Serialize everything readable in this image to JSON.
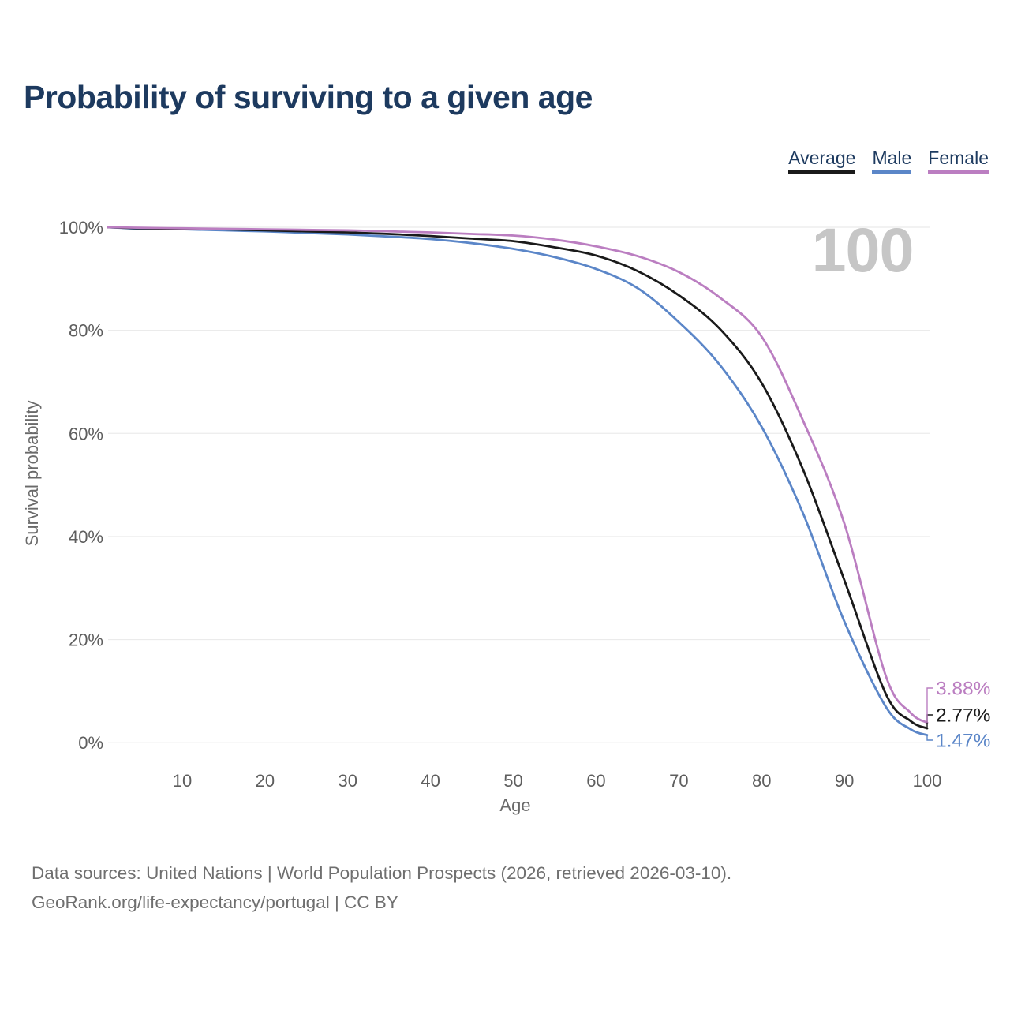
{
  "title": "Probability of surviving to a given age",
  "legend": {
    "items": [
      {
        "label": "Average",
        "color": "#1a1a1a"
      },
      {
        "label": "Male",
        "color": "#5b86c8"
      },
      {
        "label": "Female",
        "color": "#bb7ec1"
      }
    ]
  },
  "watermark": "100",
  "axes": {
    "x_title": "Age",
    "y_title": "Survival probability",
    "x_ticks": [
      "10",
      "20",
      "30",
      "40",
      "50",
      "60",
      "70",
      "80",
      "90",
      "100"
    ],
    "y_ticks": [
      "0%",
      "20%",
      "40%",
      "60%",
      "80%",
      "100%"
    ]
  },
  "footer": {
    "line1": "Data sources: United Nations | World Population Prospects (2026, retrieved 2026-03-10).",
    "line2": "GeoRank.org/life-expectancy/portugal | CC BY"
  },
  "chart_data": {
    "type": "line",
    "title": "Probability of surviving to a given age",
    "xlabel": "Age",
    "ylabel": "Survival probability",
    "xlim": [
      1,
      100
    ],
    "ylim": [
      0,
      100
    ],
    "grid": "horizontal",
    "legend_position": "top-right",
    "x_tick_values": [
      10,
      20,
      30,
      40,
      50,
      60,
      70,
      80,
      90,
      100
    ],
    "y_tick_values": [
      0,
      20,
      40,
      60,
      80,
      100
    ],
    "ages": [
      1,
      5,
      10,
      15,
      20,
      25,
      30,
      35,
      40,
      45,
      50,
      55,
      60,
      65,
      70,
      75,
      80,
      85,
      90,
      95,
      98,
      100
    ],
    "series": [
      {
        "name": "Male",
        "color": "#5b86c8",
        "end_label": "1.47%",
        "end_value": 1.47,
        "values": [
          100,
          99.7,
          99.6,
          99.4,
          99.2,
          98.9,
          98.6,
          98.2,
          97.7,
          96.9,
          95.8,
          94.2,
          91.9,
          88.2,
          81.6,
          73.2,
          61.3,
          44.5,
          23.5,
          7.0,
          2.6,
          1.47
        ]
      },
      {
        "name": "Average",
        "color": "#1a1a1a",
        "end_label": "2.77%",
        "end_value": 2.77,
        "values": [
          100,
          99.8,
          99.7,
          99.6,
          99.4,
          99.2,
          99.0,
          98.7,
          98.3,
          97.8,
          97.3,
          96.1,
          94.5,
          91.5,
          86.8,
          80.2,
          69.8,
          53.0,
          31.5,
          9.5,
          4.2,
          2.77
        ]
      },
      {
        "name": "Female",
        "color": "#bb7ec1",
        "end_label": "3.88%",
        "end_value": 3.88,
        "values": [
          100,
          99.9,
          99.8,
          99.7,
          99.6,
          99.5,
          99.4,
          99.2,
          99.0,
          98.7,
          98.4,
          97.6,
          96.3,
          94.4,
          91.3,
          86.3,
          78.8,
          62.5,
          42.5,
          13.0,
          5.8,
          3.88
        ]
      }
    ],
    "watermark": "100"
  }
}
